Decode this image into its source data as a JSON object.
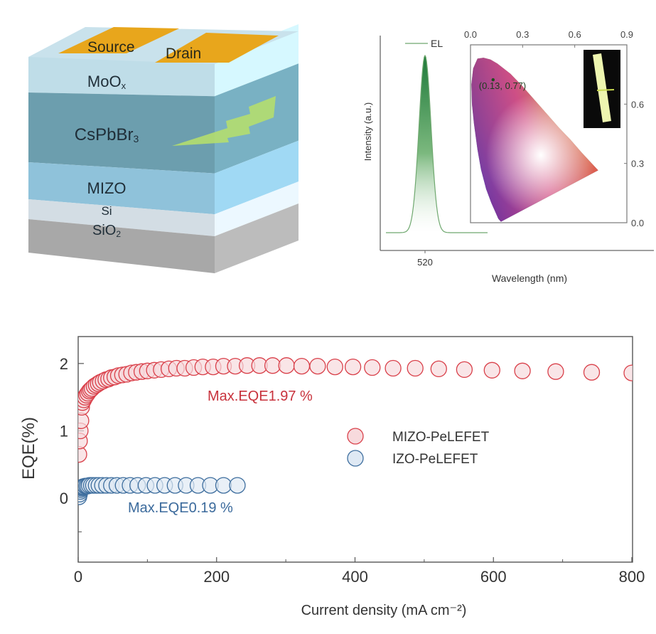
{
  "device_schematic": {
    "electrodes": [
      "Source",
      "Drain"
    ],
    "layers": [
      {
        "name": "MoOx",
        "label_main": "MoO",
        "label_sub": "x",
        "color": "#bfdde8"
      },
      {
        "name": "CsPbBr3",
        "label_main": "CsPbBr",
        "label_sub": "3",
        "color": "#6c9eae"
      },
      {
        "name": "MIZO",
        "label_main": "MIZO",
        "label_sub": "",
        "color": "#8fc2da"
      },
      {
        "name": "Si",
        "label_main": "Si",
        "label_sub": "",
        "color": "#d3dde4"
      },
      {
        "name": "SiO2",
        "label_main": "SiO",
        "label_sub": "2",
        "color": "#a8a8a8"
      }
    ],
    "electrode_color": "#e8a61c",
    "emission_color": "#b7e06a"
  },
  "chart_data": [
    {
      "type": "line",
      "title": "",
      "xlabel": "Wavelength (nm)",
      "ylabel": "Intensity (a.u.)",
      "x_ticks": [
        520
      ],
      "legend": [
        {
          "name": "EL",
          "color": "#6fa86f"
        }
      ],
      "legend_position": "top-left",
      "series": [
        {
          "name": "EL",
          "peak_nm": 520,
          "fwhm_nm": 18,
          "color": "#2e8b4a",
          "x": [
            470,
            490,
            500,
            505,
            510,
            515,
            520,
            525,
            530,
            535,
            540,
            550,
            570
          ],
          "y": [
            0.0,
            0.02,
            0.08,
            0.18,
            0.38,
            0.72,
            1.0,
            0.72,
            0.38,
            0.18,
            0.08,
            0.02,
            0.0
          ]
        }
      ],
      "xlim": [
        470,
        610
      ],
      "ylim": [
        -0.1,
        1.1
      ],
      "inset": {
        "type": "CIE 1931 chromaticity diagram",
        "x_ticks": [
          "0.0",
          "0.3",
          "0.6",
          "0.9"
        ],
        "y_ticks": [
          "0.0",
          "0.3",
          "0.6"
        ],
        "xlim": [
          0.0,
          0.9
        ],
        "ylim": [
          0.0,
          0.9
        ],
        "point": {
          "x": 0.13,
          "y": 0.77,
          "label": "(0.13, 0.77)"
        },
        "photo": "device emission photo (green stripe on black)"
      }
    },
    {
      "type": "scatter",
      "title": "",
      "xlabel": "Current density (mA cm⁻²)",
      "ylabel": "EQE(%)",
      "xlim": [
        0,
        800
      ],
      "ylim": [
        -0.95,
        2.4
      ],
      "x_ticks": [
        0,
        200,
        400,
        600,
        800
      ],
      "x_minor_ticks": [
        100,
        300,
        500,
        700
      ],
      "y_ticks": [
        0,
        1,
        2
      ],
      "y_minor_ticks": [
        -0.5
      ],
      "grid": false,
      "legend_position": "center-right",
      "annotations": [
        {
          "text": "Max.EQE1.97 %",
          "series": "MIZO-PeLEFET",
          "color": "#c8323c"
        },
        {
          "text": "Max.EQE0.19 %",
          "series": "IZO-PeLEFET",
          "color": "#3b6a9c"
        }
      ],
      "series": [
        {
          "name": "MIZO-PeLEFET",
          "color": "#d9404a",
          "fill": "#f7dadd",
          "x": [
            1,
            2,
            3,
            4,
            5,
            6,
            8,
            10,
            12,
            14,
            16,
            18,
            20,
            23,
            26,
            29,
            32,
            36,
            40,
            44,
            48,
            53,
            58,
            64,
            70,
            77,
            84,
            92,
            100,
            110,
            120,
            131,
            142,
            154,
            167,
            180,
            195,
            210,
            227,
            244,
            262,
            281,
            301,
            323,
            346,
            371,
            397,
            425,
            455,
            487,
            521,
            558,
            598,
            642,
            690,
            742,
            800
          ],
          "y": [
            0.65,
            0.85,
            1.0,
            1.15,
            1.35,
            1.42,
            1.46,
            1.5,
            1.53,
            1.56,
            1.59,
            1.61,
            1.63,
            1.66,
            1.68,
            1.7,
            1.72,
            1.74,
            1.76,
            1.77,
            1.79,
            1.8,
            1.82,
            1.83,
            1.84,
            1.86,
            1.87,
            1.88,
            1.89,
            1.9,
            1.91,
            1.92,
            1.93,
            1.93,
            1.94,
            1.95,
            1.95,
            1.96,
            1.96,
            1.97,
            1.97,
            1.97,
            1.97,
            1.96,
            1.96,
            1.95,
            1.95,
            1.94,
            1.93,
            1.93,
            1.92,
            1.91,
            1.9,
            1.89,
            1.88,
            1.87,
            1.86
          ]
        },
        {
          "name": "IZO-PeLEFET",
          "color": "#3e6e9e",
          "fill": "#dfe9f4",
          "x": [
            1,
            2,
            3,
            4,
            5,
            6,
            7,
            8,
            10,
            12,
            14,
            16,
            19,
            22,
            26,
            30,
            35,
            41,
            48,
            56,
            65,
            75,
            86,
            98,
            111,
            125,
            140,
            156,
            173,
            191,
            210,
            230
          ],
          "y": [
            0.02,
            0.06,
            0.1,
            0.13,
            0.15,
            0.16,
            0.17,
            0.17,
            0.18,
            0.18,
            0.18,
            0.19,
            0.19,
            0.19,
            0.19,
            0.19,
            0.19,
            0.19,
            0.19,
            0.19,
            0.19,
            0.19,
            0.19,
            0.19,
            0.19,
            0.19,
            0.19,
            0.19,
            0.19,
            0.19,
            0.19,
            0.19
          ]
        }
      ]
    }
  ]
}
